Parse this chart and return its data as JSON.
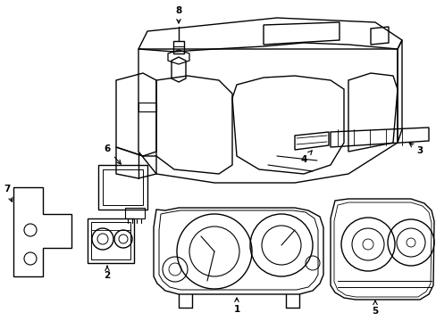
{
  "bg_color": "#ffffff",
  "line_color": "#000000",
  "fig_width": 4.89,
  "fig_height": 3.6,
  "dpi": 100,
  "lw": 1.0
}
